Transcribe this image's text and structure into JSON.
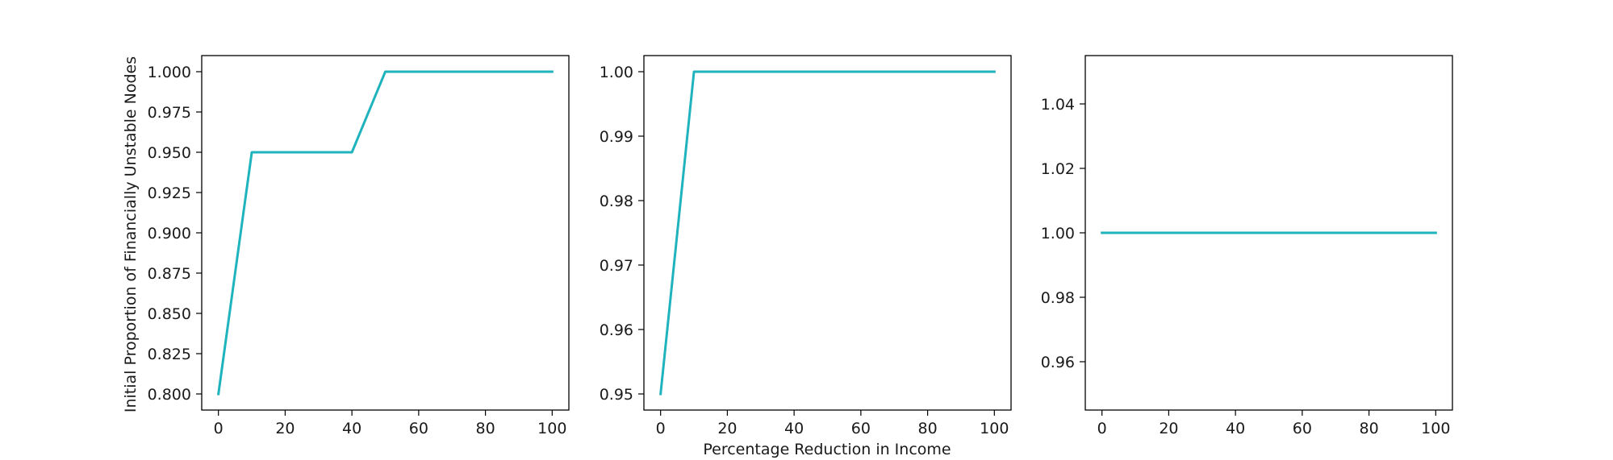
{
  "chart_data": [
    {
      "type": "line",
      "xlabel": "",
      "ylabel": "Initial Proportion of Financially Unstable Nodes",
      "x": [
        0,
        10,
        20,
        30,
        40,
        50,
        60,
        70,
        80,
        90,
        100
      ],
      "series": [
        {
          "values": [
            0.8,
            0.95,
            0.95,
            0.95,
            0.95,
            1.0,
            1.0,
            1.0,
            1.0,
            1.0,
            1.0
          ],
          "color": "#1fb3bd"
        }
      ],
      "xlim": [
        -5,
        105
      ],
      "ylim": [
        0.79,
        1.01
      ],
      "xticks": [
        0,
        20,
        40,
        60,
        80,
        100
      ],
      "xtick_labels": [
        "0",
        "20",
        "40",
        "60",
        "80",
        "100"
      ],
      "yticks": [
        0.8,
        0.825,
        0.85,
        0.875,
        0.9,
        0.925,
        0.95,
        0.975,
        1.0
      ],
      "ytick_labels": [
        "0.800",
        "0.825",
        "0.850",
        "0.875",
        "0.900",
        "0.925",
        "0.950",
        "0.975",
        "1.000"
      ],
      "grid": false
    },
    {
      "type": "line",
      "xlabel": "Percentage Reduction in Income",
      "ylabel": "",
      "x": [
        0,
        10,
        20,
        30,
        40,
        50,
        60,
        70,
        80,
        90,
        100
      ],
      "series": [
        {
          "values": [
            0.95,
            1.0,
            1.0,
            1.0,
            1.0,
            1.0,
            1.0,
            1.0,
            1.0,
            1.0,
            1.0
          ],
          "color": "#1fb3bd"
        }
      ],
      "xlim": [
        -5,
        105
      ],
      "ylim": [
        0.9475,
        1.0025
      ],
      "xticks": [
        0,
        20,
        40,
        60,
        80,
        100
      ],
      "xtick_labels": [
        "0",
        "20",
        "40",
        "60",
        "80",
        "100"
      ],
      "yticks": [
        0.95,
        0.96,
        0.97,
        0.98,
        0.99,
        1.0
      ],
      "ytick_labels": [
        "0.95",
        "0.96",
        "0.97",
        "0.98",
        "0.99",
        "1.00"
      ],
      "grid": false
    },
    {
      "type": "line",
      "xlabel": "",
      "ylabel": "",
      "x": [
        0,
        10,
        20,
        30,
        40,
        50,
        60,
        70,
        80,
        90,
        100
      ],
      "series": [
        {
          "values": [
            1.0,
            1.0,
            1.0,
            1.0,
            1.0,
            1.0,
            1.0,
            1.0,
            1.0,
            1.0,
            1.0
          ],
          "color": "#1fb3bd"
        }
      ],
      "xlim": [
        -5,
        105
      ],
      "ylim": [
        0.945,
        1.055
      ],
      "xticks": [
        0,
        20,
        40,
        60,
        80,
        100
      ],
      "xtick_labels": [
        "0",
        "20",
        "40",
        "60",
        "80",
        "100"
      ],
      "yticks": [
        0.96,
        0.98,
        1.0,
        1.02,
        1.04
      ],
      "ytick_labels": [
        "0.96",
        "0.98",
        "1.00",
        "1.02",
        "1.04"
      ],
      "grid": false
    }
  ]
}
